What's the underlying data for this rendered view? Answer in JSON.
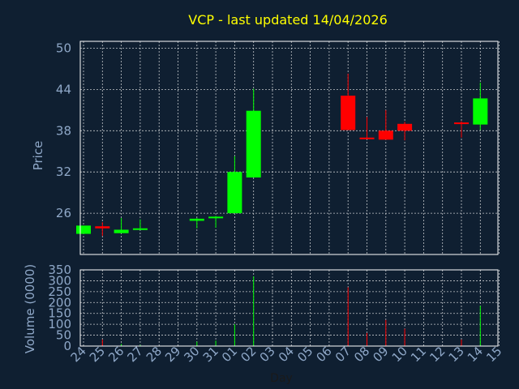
{
  "chart_data": {
    "type": "candlestick",
    "title": "VCP - last updated 14/04/2026",
    "xlabel": "Day",
    "price_panel": {
      "ylabel": "Price",
      "ylim": [
        20,
        51
      ],
      "yticks": [
        26,
        32,
        38,
        44,
        50
      ],
      "grid": true
    },
    "volume_panel": {
      "ylabel": "Volume (0000)",
      "ylim": [
        0,
        350
      ],
      "yticks": [
        0,
        50,
        100,
        150,
        200,
        250,
        300,
        350
      ],
      "grid": true
    },
    "x_ticks": [
      "24",
      "25",
      "26",
      "27",
      "28",
      "29",
      "30",
      "31",
      "01",
      "02",
      "03",
      "04",
      "05",
      "06",
      "07",
      "08",
      "09",
      "10",
      "11",
      "12",
      "13",
      "14",
      "15"
    ],
    "up_color": "#00ff00",
    "down_color": "#ff0000",
    "candles": [
      {
        "x": "24",
        "open": 23.0,
        "close": 24.2,
        "high": 24.2,
        "low": 23.0,
        "volume": 0
      },
      {
        "x": "25",
        "open": 24.1,
        "close": 23.8,
        "high": 24.7,
        "low": 22.7,
        "volume": 30
      },
      {
        "x": "26",
        "open": 23.1,
        "close": 23.6,
        "high": 25.3,
        "low": 23.1,
        "volume": 10
      },
      {
        "x": "27",
        "open": 23.7,
        "close": 23.8,
        "high": 25.1,
        "low": 23.7,
        "volume": 5
      },
      {
        "x": "30",
        "open": 24.9,
        "close": 25.2,
        "high": 25.3,
        "low": 23.8,
        "volume": 20
      },
      {
        "x": "31",
        "open": 25.3,
        "close": 25.5,
        "high": 25.6,
        "low": 23.9,
        "volume": 25
      },
      {
        "x": "01",
        "open": 26.0,
        "close": 32.0,
        "high": 34.3,
        "low": 26.0,
        "volume": 100
      },
      {
        "x": "02",
        "open": 31.2,
        "close": 40.9,
        "high": 44.1,
        "low": 31.2,
        "volume": 320
      },
      {
        "x": "07",
        "open": 43.1,
        "close": 38.1,
        "high": 46.3,
        "low": 38.1,
        "volume": 270
      },
      {
        "x": "08",
        "open": 37.0,
        "close": 36.8,
        "high": 40.0,
        "low": 36.8,
        "volume": 60
      },
      {
        "x": "09",
        "open": 38.0,
        "close": 36.7,
        "high": 41.0,
        "low": 36.7,
        "volume": 120
      },
      {
        "x": "10",
        "open": 39.0,
        "close": 38.0,
        "high": 39.3,
        "low": 36.6,
        "volume": 80
      },
      {
        "x": "13",
        "open": 39.2,
        "close": 39.0,
        "high": 39.4,
        "low": 37.0,
        "volume": 30
      },
      {
        "x": "14",
        "open": 38.9,
        "close": 42.7,
        "high": 45.0,
        "low": 38.1,
        "volume": 185
      }
    ]
  }
}
